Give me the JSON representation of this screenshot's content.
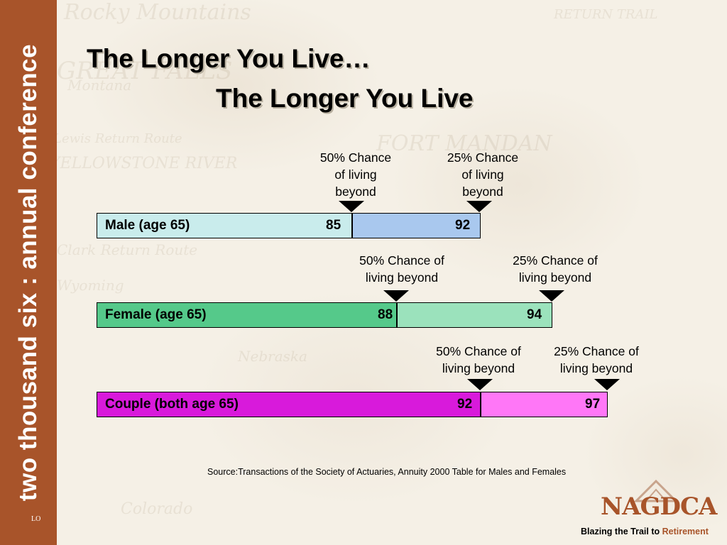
{
  "sidebar": {
    "text": "two thousand six : annual conference",
    "footer": "LO"
  },
  "title": {
    "line1": "The Longer You Live…",
    "line2": "The Longer You Live"
  },
  "rows": [
    {
      "label": "Male (age 65)",
      "value50": "85",
      "value25": "92",
      "note50": [
        "50% Chance",
        "of living",
        "beyond"
      ],
      "note25": [
        "25% Chance",
        "of living",
        "beyond"
      ],
      "colors": {
        "left": "#c9ecec",
        "right": "#a9c8ee"
      }
    },
    {
      "label": "Female (age 65)",
      "value50": "88",
      "value25": "94",
      "note50": [
        "50% Chance of",
        "living beyond"
      ],
      "note25": [
        "25% Chance of",
        "living beyond"
      ],
      "colors": {
        "left": "#55c98a",
        "right": "#9be2bc"
      }
    },
    {
      "label": "Couple (both age 65)",
      "value50": "92",
      "value25": "97",
      "note50": [
        "50% Chance of",
        "living beyond"
      ],
      "note25": [
        "25% Chance of",
        "living beyond"
      ],
      "colors": {
        "left": "#d81adb",
        "right": "#ff77f7"
      }
    }
  ],
  "source": "Source:Transactions of the Society of Actuaries, Annuity 2000 Table for Males and Females",
  "logo": {
    "name": "NAGDCA",
    "tag_part1": "Blazing the Trail to ",
    "tag_part2": "Retirement"
  },
  "colors": {
    "sidebar": "#a8542a",
    "logo": "#a8542a"
  }
}
